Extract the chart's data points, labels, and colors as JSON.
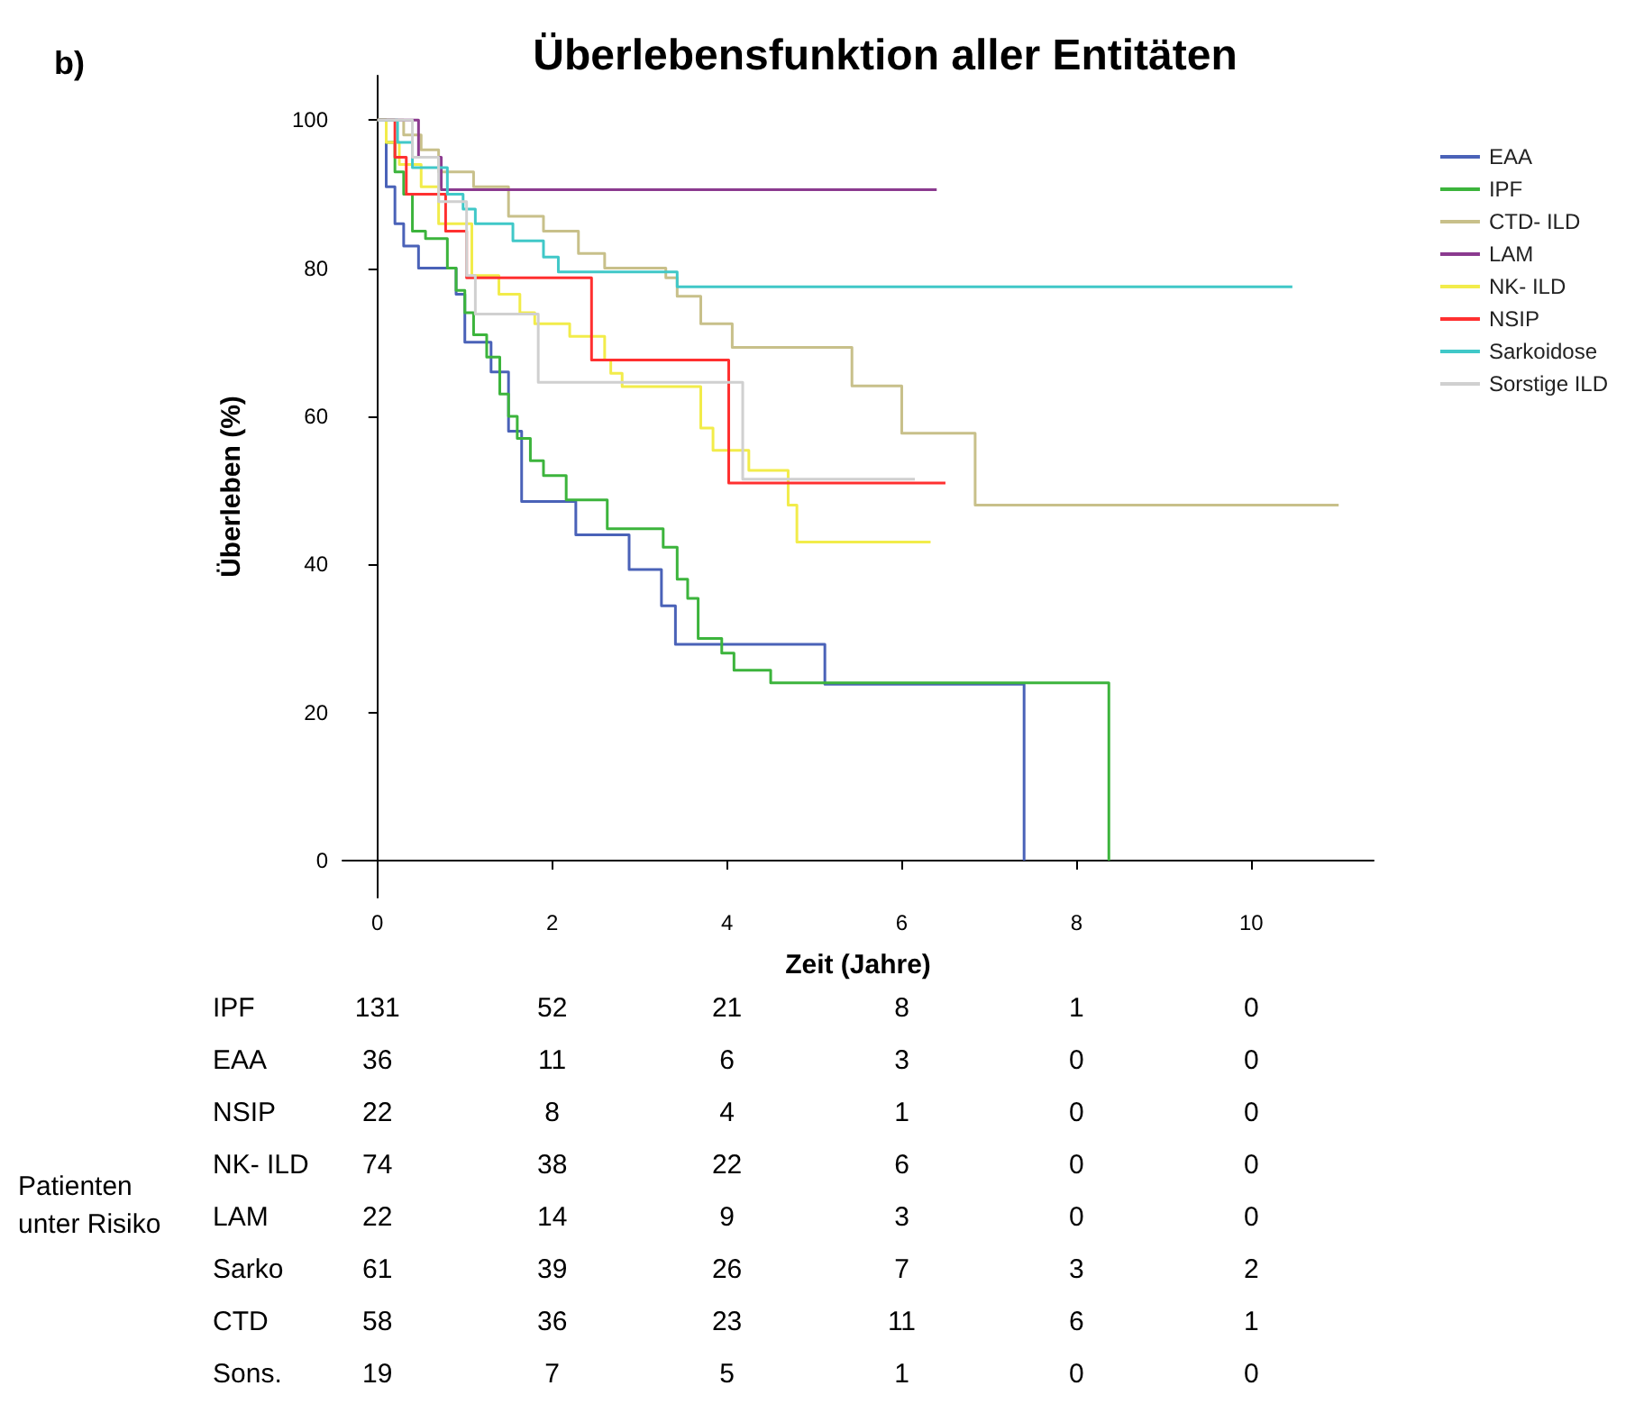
{
  "chart_data": {
    "type": "step",
    "title": "Überlebensfunktion aller Entitäten",
    "xlabel": "Zeit (Jahre)",
    "ylabel": "Überleben (%)",
    "xlim": [
      -0.4,
      11.4
    ],
    "ylim": [
      -5,
      106
    ],
    "xticks": [
      0,
      2,
      4,
      6,
      8,
      10
    ],
    "yticks": [
      0,
      20,
      40,
      60,
      80,
      100
    ],
    "grid": false,
    "legend": "right",
    "series": [
      {
        "name": "EAA",
        "color": "#4a62b8",
        "x": [
          0,
          0.1,
          0.2,
          0.3,
          0.47,
          0.9,
          1.0,
          1.3,
          1.5,
          1.65,
          2.27,
          2.88,
          3.25,
          3.41,
          5.12,
          7.4
        ],
        "values": [
          100,
          91,
          86,
          83,
          80,
          76.5,
          70,
          66,
          58,
          48.5,
          44,
          39.3,
          34.4,
          29.2,
          23.8,
          0
        ]
      },
      {
        "name": "IPF",
        "color": "#3cb43c",
        "x": [
          0,
          0.1,
          0.2,
          0.3,
          0.4,
          0.55,
          0.8,
          0.9,
          1.0,
          1.1,
          1.25,
          1.4,
          1.5,
          1.6,
          1.75,
          1.9,
          2.16,
          2.63,
          3.27,
          3.43,
          3.55,
          3.67,
          3.94,
          4.08,
          4.5,
          8.37
        ],
        "values": [
          100,
          97,
          93,
          90,
          85,
          84,
          80,
          77,
          74,
          71,
          68,
          63,
          60,
          57,
          54,
          52,
          48.7,
          44.8,
          42.3,
          38,
          35.4,
          30,
          28,
          25.7,
          24,
          0
        ]
      },
      {
        "name": "CTD- ILD",
        "color": "#c8c08a",
        "x": [
          0,
          0.3,
          0.5,
          0.7,
          1.1,
          1.5,
          1.9,
          2.3,
          2.6,
          3.3,
          3.43,
          3.7,
          4.06,
          5.43,
          6.0,
          6.84,
          11.0
        ],
        "values": [
          100,
          98,
          96,
          93,
          91,
          87,
          85,
          82,
          80,
          78.7,
          76.2,
          72.5,
          69.3,
          64.1,
          57.7,
          48,
          48
        ]
      },
      {
        "name": "LAM",
        "color": "#8b3a8f",
        "x": [
          0,
          0.47,
          0.73,
          6.4
        ],
        "values": [
          100,
          95,
          90.6,
          90.6
        ]
      },
      {
        "name": "NK- ILD",
        "color": "#f2ec4a",
        "x": [
          0,
          0.1,
          0.25,
          0.5,
          0.7,
          1.08,
          1.39,
          1.63,
          1.8,
          2.2,
          2.6,
          2.67,
          2.8,
          3.7,
          3.84,
          4.25,
          4.7,
          4.8,
          6.33
        ],
        "values": [
          100,
          97,
          94,
          91,
          86,
          79,
          76.5,
          74,
          72.5,
          70.8,
          67.6,
          65.8,
          64,
          58.4,
          55.4,
          52.7,
          48,
          43,
          43
        ]
      },
      {
        "name": "NSIP",
        "color": "#ff3030",
        "x": [
          0,
          0.2,
          0.33,
          0.78,
          1.02,
          2.45,
          4.02,
          6.5
        ],
        "values": [
          100,
          95,
          90,
          85,
          78.7,
          67.6,
          51,
          51
        ]
      },
      {
        "name": "Sarkoidose",
        "color": "#40c8c8",
        "x": [
          0,
          0.23,
          0.4,
          0.8,
          0.98,
          1.12,
          1.55,
          1.9,
          2.07,
          3.43,
          10.47
        ],
        "values": [
          100,
          97,
          93.6,
          90,
          88,
          86,
          83.7,
          81.5,
          79.5,
          77.5,
          77.5
        ]
      },
      {
        "name": "Sorstige ILD",
        "color": "#d0d0d0",
        "x": [
          0,
          0.4,
          0.7,
          1.02,
          1.12,
          1.84,
          4.18,
          6.15
        ],
        "values": [
          100,
          95,
          89,
          79,
          73.8,
          64.6,
          51.5,
          51.5
        ]
      }
    ],
    "annotations": [
      "b)",
      "Patienten unter Risiko",
      "IPF  131  52  21  8  1  0",
      "EAA  36  11  6  3  0  0",
      "NSIP  22  8  4  1  0  0",
      "NK- ILD  74  38  22  6  0  0",
      "LAM  22  14  9  3  0  0",
      "Sarko  61  39  26  7  3  2",
      "CTD  58  36  23  11  6  1",
      "Sons.  19  7  5  1  0  0"
    ]
  }
}
